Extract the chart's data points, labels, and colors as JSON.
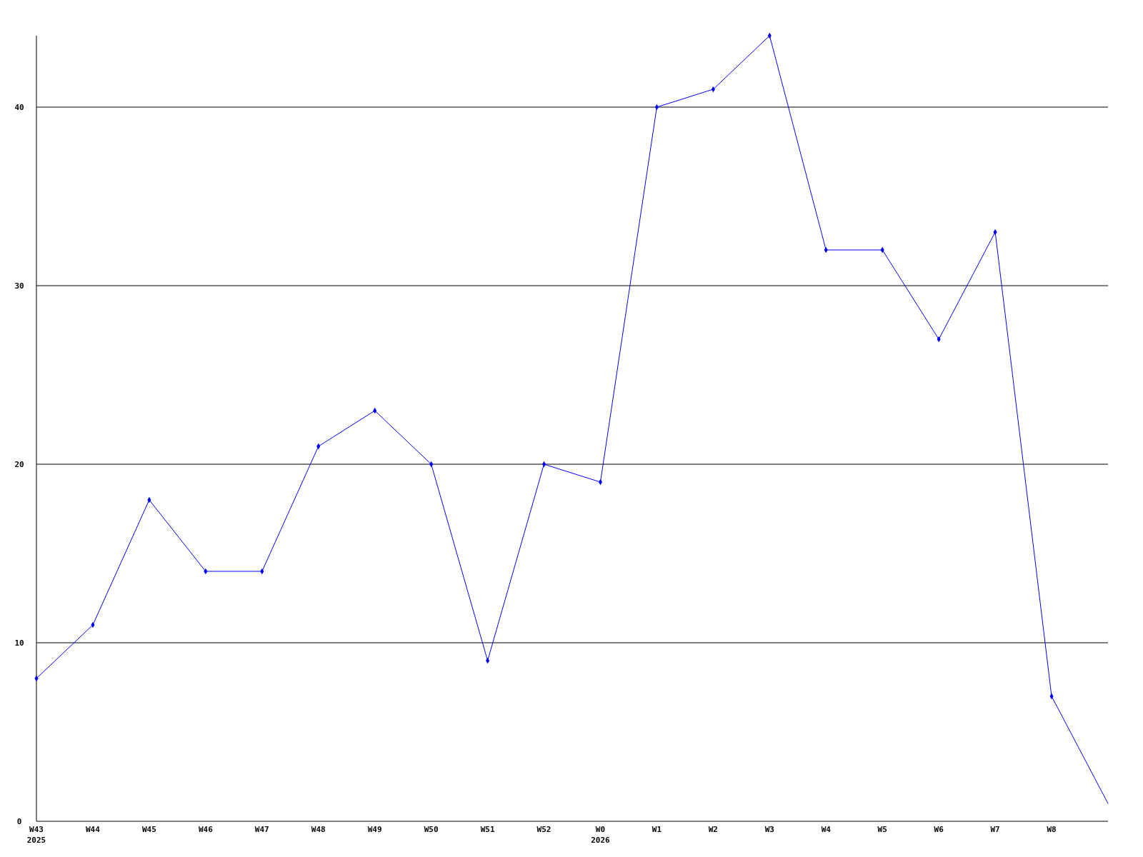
{
  "chart_data": {
    "type": "line",
    "categories": [
      "W43\n2025",
      "W44",
      "W45",
      "W46",
      "W47",
      "W48",
      "W49",
      "W50",
      "W51",
      "W52",
      "W0\n2026",
      "W1",
      "W2",
      "W3",
      "W4",
      "W5",
      "W6",
      "W7",
      "W8",
      null
    ],
    "series": [
      {
        "color": "#0000ff",
        "values": [
          8,
          11,
          18,
          14,
          14,
          21,
          23,
          20,
          9,
          20,
          19,
          40,
          41,
          44,
          32,
          32,
          27,
          33,
          7,
          1
        ]
      }
    ],
    "ylim": [
      0,
      44
    ],
    "yticks": [
      0,
      10,
      20,
      30,
      40
    ],
    "grid": "y",
    "marker": "diamond"
  }
}
